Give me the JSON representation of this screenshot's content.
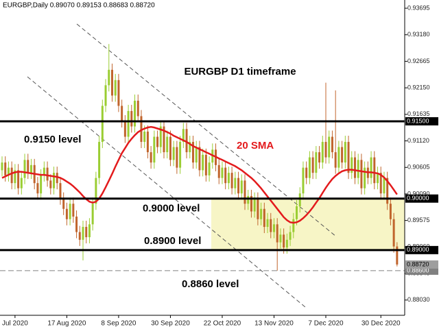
{
  "chart_data": {
    "type": "candlestick",
    "title": "EURGBP,Daily  0.89070 0.89153 0.88683 0.88720",
    "annotations": [
      "EURGBP D1 timeframe"
    ],
    "categories": [
      null,
      null,
      null,
      null,
      "Jul 2020",
      null,
      null,
      null,
      null,
      null,
      null,
      null,
      null,
      null,
      null,
      null,
      null,
      null,
      null,
      null,
      "17 Aug 2020",
      null,
      null,
      null,
      null,
      null,
      null,
      null,
      null,
      null,
      null,
      null,
      null,
      null,
      null,
      null,
      "8 Sep 2020",
      null,
      null,
      null,
      null,
      null,
      null,
      null,
      null,
      null,
      null,
      null,
      null,
      null,
      null,
      null,
      "30 Sep 2020",
      null,
      null,
      null,
      null,
      null,
      null,
      null,
      null,
      null,
      null,
      null,
      null,
      null,
      null,
      null,
      "22 Oct 2020",
      null,
      null,
      null,
      null,
      null,
      null,
      null,
      null,
      null,
      null,
      null,
      null,
      null,
      null,
      null,
      "13 Nov 2020",
      null,
      null,
      null,
      null,
      null,
      null,
      null,
      null,
      null,
      null,
      null,
      null,
      null,
      null,
      null,
      "7 Dec 2020",
      null,
      null,
      null,
      null,
      null,
      null,
      null,
      null,
      null,
      null,
      null,
      null,
      null,
      null,
      null,
      null,
      "30 Dec 2020",
      null,
      null,
      null,
      null,
      null
    ],
    "open": [
      0.9055,
      0.907,
      0.9045,
      0.906,
      0.903,
      0.9055,
      0.902,
      0.904,
      0.9075,
      0.905,
      0.9065,
      0.903,
      0.901,
      0.9045,
      0.906,
      0.9035,
      0.902,
      0.905,
      0.903,
      0.9,
      0.898,
      0.896,
      0.899,
      0.8965,
      0.8935,
      0.892,
      0.8945,
      0.8925,
      0.895,
      0.899,
      0.904,
      0.911,
      0.918,
      0.922,
      0.925,
      0.92,
      0.923,
      0.918,
      0.915,
      0.912,
      0.917,
      0.914,
      0.919,
      0.916,
      0.911,
      0.913,
      0.909,
      0.907,
      0.912,
      0.91,
      0.914,
      0.909,
      0.912,
      0.9075,
      0.91,
      0.906,
      0.911,
      0.9135,
      0.909,
      0.911,
      0.907,
      0.91,
      0.9055,
      0.9085,
      0.9045,
      0.907,
      0.9095,
      0.9065,
      0.904,
      0.906,
      0.903,
      0.905,
      0.902,
      0.904,
      0.901,
      0.9035,
      0.899,
      0.9005,
      0.8975,
      0.9,
      0.896,
      0.898,
      0.8945,
      0.896,
      0.8935,
      0.895,
      0.8915,
      0.893,
      0.8905,
      0.892,
      0.8935,
      0.896,
      0.8985,
      0.901,
      0.906,
      0.904,
      0.908,
      0.905,
      0.909,
      0.907,
      0.911,
      0.908,
      0.912,
      0.909,
      0.906,
      0.91,
      0.907,
      0.911,
      0.905,
      0.908,
      0.904,
      0.9075,
      0.902,
      0.906,
      0.904,
      0.908,
      0.903,
      0.905,
      0.901,
      0.904,
      0.899,
      0.896,
      0.8907
    ],
    "high": [
      0.9082,
      0.9082,
      0.9072,
      0.9072,
      0.9067,
      0.9067,
      0.9052,
      0.9087,
      0.9087,
      0.9077,
      0.9077,
      0.9042,
      0.9057,
      0.9072,
      0.9072,
      0.9047,
      0.9062,
      0.9062,
      0.9042,
      0.9012,
      0.8992,
      0.9002,
      0.9002,
      0.8977,
      0.8947,
      0.8957,
      0.8957,
      0.8962,
      0.9002,
      0.9052,
      0.9122,
      0.9192,
      0.9232,
      0.93,
      0.9262,
      0.9242,
      0.9242,
      0.9192,
      0.9162,
      0.9182,
      0.9182,
      0.9202,
      0.9202,
      0.9172,
      0.9142,
      0.9142,
      0.9102,
      0.9132,
      0.9132,
      0.9152,
      0.9152,
      0.9132,
      0.9132,
      0.9112,
      0.9112,
      0.9122,
      0.9147,
      0.9147,
      0.9122,
      0.9122,
      0.9112,
      0.9112,
      0.9097,
      0.9097,
      0.9082,
      0.9107,
      0.9107,
      0.9077,
      0.9072,
      0.9072,
      0.9062,
      0.9062,
      0.9052,
      0.9052,
      0.9047,
      0.9047,
      0.9017,
      0.9017,
      0.9012,
      0.9012,
      0.8992,
      0.8992,
      0.8972,
      0.8972,
      0.8962,
      0.8962,
      0.8942,
      0.8942,
      0.8932,
      0.8947,
      0.8972,
      0.8997,
      0.9022,
      0.9072,
      0.9072,
      0.9092,
      0.9092,
      0.9102,
      0.9102,
      0.9122,
      0.9225,
      0.9132,
      0.9132,
      0.921,
      0.9112,
      0.9112,
      0.9122,
      0.9122,
      0.9092,
      0.9092,
      0.9087,
      0.9087,
      0.9072,
      0.9072,
      0.9092,
      0.9092,
      0.9062,
      0.9062,
      0.9052,
      0.9052,
      0.9002,
      0.8972,
      0.89153
    ],
    "low": [
      0.9043,
      0.9033,
      0.9033,
      0.9018,
      0.9018,
      0.9008,
      0.9008,
      0.9028,
      0.9038,
      0.9038,
      0.9018,
      0.8998,
      0.8998,
      0.9033,
      0.9023,
      0.9008,
      0.9008,
      0.9018,
      0.8988,
      0.8968,
      0.8948,
      0.8948,
      0.8953,
      0.8923,
      0.8908,
      0.888,
      0.8913,
      0.8913,
      0.8938,
      0.8978,
      0.9028,
      0.9098,
      0.9168,
      0.9208,
      0.9188,
      0.9188,
      0.9168,
      0.9138,
      0.9108,
      0.9108,
      0.9128,
      0.9128,
      0.9148,
      0.9098,
      0.9098,
      0.9078,
      0.9058,
      0.9058,
      0.9088,
      0.9088,
      0.9078,
      0.9078,
      0.9063,
      0.9063,
      0.9048,
      0.9048,
      0.9098,
      0.9078,
      0.9078,
      0.9058,
      0.9058,
      0.9043,
      0.9043,
      0.9033,
      0.9033,
      0.9058,
      0.9053,
      0.9028,
      0.9028,
      0.9018,
      0.9018,
      0.9008,
      0.9008,
      0.8998,
      0.8998,
      0.8978,
      0.8978,
      0.8963,
      0.8963,
      0.8948,
      0.8948,
      0.8933,
      0.8933,
      0.8923,
      0.8923,
      0.886,
      0.8903,
      0.8893,
      0.8893,
      0.8908,
      0.8923,
      0.8948,
      0.8973,
      0.8998,
      0.9028,
      0.9028,
      0.9038,
      0.9038,
      0.9058,
      0.9058,
      0.9068,
      0.9068,
      0.9078,
      0.9048,
      0.9048,
      0.9058,
      0.9058,
      0.9038,
      0.9038,
      0.9028,
      0.9028,
      0.9008,
      0.9008,
      0.9028,
      0.9028,
      0.9018,
      0.9018,
      0.8998,
      0.8998,
      0.8978,
      0.8948,
      0.8895,
      0.88683
    ],
    "close": [
      0.907,
      0.9045,
      0.906,
      0.903,
      0.9055,
      0.902,
      0.904,
      0.9075,
      0.905,
      0.9065,
      0.903,
      0.901,
      0.9045,
      0.906,
      0.9035,
      0.902,
      0.905,
      0.903,
      0.9,
      0.898,
      0.896,
      0.899,
      0.8965,
      0.8935,
      0.892,
      0.8945,
      0.8925,
      0.895,
      0.899,
      0.904,
      0.911,
      0.918,
      0.922,
      0.925,
      0.92,
      0.923,
      0.918,
      0.915,
      0.912,
      0.917,
      0.914,
      0.919,
      0.916,
      0.911,
      0.913,
      0.909,
      0.907,
      0.912,
      0.91,
      0.914,
      0.909,
      0.912,
      0.9075,
      0.91,
      0.906,
      0.911,
      0.9135,
      0.909,
      0.911,
      0.907,
      0.91,
      0.9055,
      0.9085,
      0.9045,
      0.907,
      0.9095,
      0.9065,
      0.904,
      0.906,
      0.903,
      0.905,
      0.902,
      0.904,
      0.901,
      0.9035,
      0.899,
      0.9005,
      0.8975,
      0.9,
      0.896,
      0.898,
      0.8945,
      0.896,
      0.8935,
      0.895,
      0.8915,
      0.893,
      0.8905,
      0.892,
      0.8935,
      0.896,
      0.8985,
      0.901,
      0.906,
      0.904,
      0.908,
      0.905,
      0.909,
      0.907,
      0.911,
      0.908,
      0.912,
      0.909,
      0.906,
      0.91,
      0.907,
      0.911,
      0.905,
      0.908,
      0.904,
      0.9075,
      0.902,
      0.906,
      0.904,
      0.908,
      0.903,
      0.905,
      0.901,
      0.904,
      0.899,
      0.896,
      0.8907,
      0.8872
    ],
    "up_color": "#9acd32",
    "down_color": "#c0642c",
    "sma": {
      "name": "20 SMA",
      "color": "#e31a1c",
      "values": [
        0.904,
        0.9043,
        0.9046,
        0.9049,
        0.9051,
        0.9052,
        0.9052,
        0.9051,
        0.905,
        0.9049,
        0.9048,
        0.9047,
        0.9046,
        0.9046,
        0.9045,
        0.9044,
        0.9043,
        0.9042,
        0.904,
        0.9037,
        0.9033,
        0.9029,
        0.9024,
        0.9018,
        0.9012,
        0.9005,
        0.8999,
        0.8994,
        0.8992,
        0.8994,
        0.9,
        0.901,
        0.9022,
        0.9035,
        0.9048,
        0.9062,
        0.9075,
        0.9088,
        0.9098,
        0.9108,
        0.9116,
        0.9123,
        0.9129,
        0.9133,
        0.9136,
        0.9138,
        0.9139,
        0.9138,
        0.9136,
        0.9134,
        0.9132,
        0.9129,
        0.9126,
        0.9122,
        0.9119,
        0.9116,
        0.9113,
        0.911,
        0.9106,
        0.9102,
        0.9099,
        0.9096,
        0.9093,
        0.909,
        0.9087,
        0.9084,
        0.9081,
        0.9078,
        0.9075,
        0.9072,
        0.9069,
        0.9066,
        0.9063,
        0.9059,
        0.9055,
        0.905,
        0.9045,
        0.904,
        0.9034,
        0.9027,
        0.902,
        0.9012,
        0.9004,
        0.8996,
        0.8988,
        0.898,
        0.8972,
        0.8964,
        0.8958,
        0.8954,
        0.8953,
        0.8954,
        0.8957,
        0.8962,
        0.8968,
        0.8975,
        0.8983,
        0.8992,
        0.9001,
        0.9011,
        0.9021,
        0.903,
        0.9038,
        0.9044,
        0.9049,
        0.9053,
        0.9055,
        0.9056,
        0.9056,
        0.9055,
        0.9054,
        0.9053,
        0.9052,
        0.9051,
        0.9051,
        0.905,
        0.9049,
        0.9046,
        0.9041,
        0.9034,
        0.9026,
        0.9017,
        0.9008
      ]
    },
    "ylim": [
      0.87734,
      0.93855
    ],
    "yticks": [
      {
        "value": 0.93695,
        "label": "0.93695"
      },
      {
        "value": 0.9318,
        "label": "0.93180"
      },
      {
        "value": 0.92665,
        "label": "0.92665"
      },
      {
        "value": 0.9215,
        "label": "0.92150"
      },
      {
        "value": 0.91635,
        "label": "0.91635"
      },
      {
        "value": 0.9112,
        "label": "0.91120"
      },
      {
        "value": 0.90605,
        "label": "0.90605"
      },
      {
        "value": 0.9009,
        "label": "0.90090"
      },
      {
        "value": 0.89575,
        "label": "0.89575"
      },
      {
        "value": 0.8906,
        "label": "0.89060"
      },
      {
        "value": 0.88545,
        "label": "0.88545"
      },
      {
        "value": 0.8803,
        "label": "0.88030"
      }
    ],
    "levels": [
      {
        "value": 0.915,
        "label": "0.91500",
        "text": "0.9150 level",
        "color": "#000000",
        "dashed": false
      },
      {
        "value": 0.9,
        "label": "0.90000",
        "text": "0.9000 level",
        "color": "#000000",
        "dashed": false
      },
      {
        "value": 0.89,
        "label": "0.89000",
        "text": "0.8900 level",
        "color": "#000000",
        "dashed": false
      },
      {
        "value": 0.886,
        "label": "0.88600",
        "text": "0.8860 level",
        "color": "#808080",
        "dashed": true
      }
    ],
    "current_price": {
      "value": 0.8872,
      "label": "0.88720",
      "color": "#9e9e9e"
    },
    "zone_color": "#f7f5c6"
  }
}
